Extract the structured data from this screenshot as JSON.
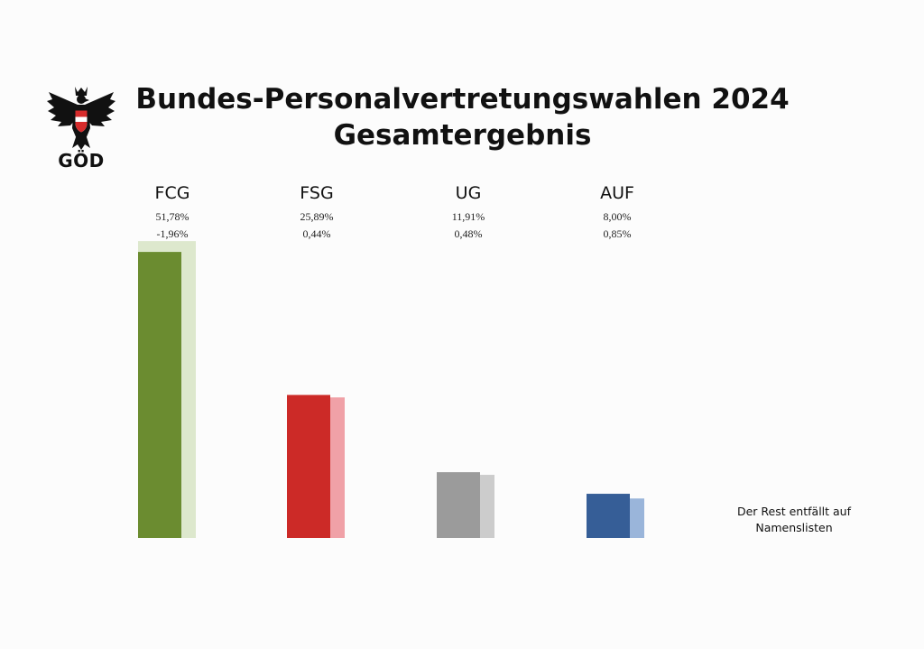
{
  "logo": {
    "text": "GÖD"
  },
  "title": {
    "line1": "Bundes-Personalvertretungswahlen 2024",
    "line2": "Gesamtergebnis"
  },
  "note": {
    "line1": "Der Rest entfällt auf",
    "line2": "Namenslisten"
  },
  "colors": {
    "FCG": {
      "main": "#6b8c30",
      "light": "#dde8cd"
    },
    "FSG": {
      "main": "#cc2a27",
      "light": "#f0a1a7"
    },
    "UG": {
      "main": "#9b9b9b",
      "light": "#cccccc"
    },
    "AUF": {
      "main": "#365e97",
      "light": "#9ab5da"
    }
  },
  "chart_data": {
    "type": "bar",
    "categories": [
      "FCG",
      "FSG",
      "UG",
      "AUF"
    ],
    "series": [
      {
        "values": [
          51.78,
          25.89,
          11.91,
          8.0
        ]
      },
      {
        "values": [
          53.74,
          25.45,
          11.43,
          7.15
        ]
      }
    ],
    "value_labels": [
      "51,78%",
      "25,89%",
      "11,91%",
      "8,00%"
    ],
    "change_labels": [
      "-1,96%",
      "0,44%",
      "0,48%",
      "0,85%"
    ],
    "ylim": [
      0,
      55
    ],
    "grid": false,
    "legend": "none"
  }
}
